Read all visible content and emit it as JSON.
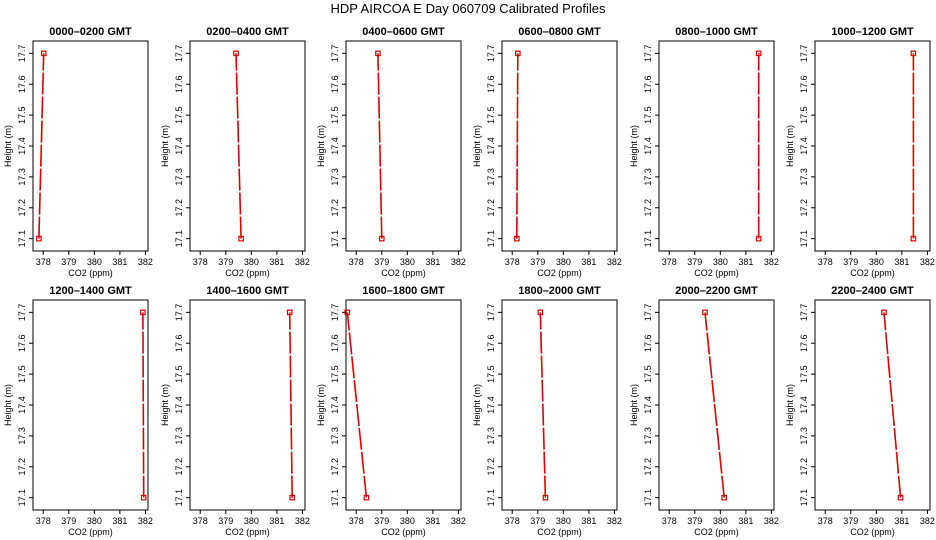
{
  "title": "HDP  AIRCOA E  Day 060709  Calibrated Profiles",
  "line_color": "#dd0000",
  "chart_data": [
    {
      "type": "line",
      "title": "0000–0200 GMT",
      "xlabel": "CO2 (ppm)",
      "ylabel": "Height (m)",
      "xlim": [
        377.6,
        382.1
      ],
      "ylim": [
        17.06,
        17.74
      ],
      "xticks": [
        378,
        379,
        380,
        381,
        382
      ],
      "yticks": [
        17.1,
        17.2,
        17.3,
        17.4,
        17.5,
        17.6,
        17.7
      ],
      "grid": false,
      "series": [
        {
          "x": [
            377.83,
            378.02
          ],
          "y": [
            17.1,
            17.7
          ]
        }
      ]
    },
    {
      "type": "line",
      "title": "0200–0400 GMT",
      "xlabel": "CO2 (ppm)",
      "ylabel": "Height (m)",
      "xlim": [
        377.6,
        382.1
      ],
      "ylim": [
        17.06,
        17.74
      ],
      "xticks": [
        378,
        379,
        380,
        381,
        382
      ],
      "yticks": [
        17.1,
        17.2,
        17.3,
        17.4,
        17.5,
        17.6,
        17.7
      ],
      "grid": false,
      "series": [
        {
          "x": [
            379.6,
            379.4
          ],
          "y": [
            17.1,
            17.7
          ]
        }
      ]
    },
    {
      "type": "line",
      "title": "0400–0600 GMT",
      "xlabel": "CO2 (ppm)",
      "ylabel": "Height (m)",
      "xlim": [
        377.6,
        382.1
      ],
      "ylim": [
        17.06,
        17.74
      ],
      "xticks": [
        378,
        379,
        380,
        381,
        382
      ],
      "yticks": [
        17.1,
        17.2,
        17.3,
        17.4,
        17.5,
        17.6,
        17.7
      ],
      "grid": false,
      "series": [
        {
          "x": [
            379.0,
            378.85
          ],
          "y": [
            17.1,
            17.7
          ]
        }
      ]
    },
    {
      "type": "line",
      "title": "0600–0800 GMT",
      "xlabel": "CO2 (ppm)",
      "ylabel": "Height (m)",
      "xlim": [
        377.6,
        382.1
      ],
      "ylim": [
        17.06,
        17.74
      ],
      "xticks": [
        378,
        379,
        380,
        381,
        382
      ],
      "yticks": [
        17.1,
        17.2,
        17.3,
        17.4,
        17.5,
        17.6,
        17.7
      ],
      "grid": false,
      "series": [
        {
          "x": [
            378.18,
            378.22
          ],
          "y": [
            17.1,
            17.7
          ]
        }
      ]
    },
    {
      "type": "line",
      "title": "0800–1000 GMT",
      "xlabel": "CO2 (ppm)",
      "ylabel": "Height (m)",
      "xlim": [
        377.6,
        382.1
      ],
      "ylim": [
        17.06,
        17.74
      ],
      "xticks": [
        378,
        379,
        380,
        381,
        382
      ],
      "yticks": [
        17.1,
        17.2,
        17.3,
        17.4,
        17.5,
        17.6,
        17.7
      ],
      "grid": false,
      "series": [
        {
          "x": [
            381.5,
            381.5
          ],
          "y": [
            17.1,
            17.7
          ]
        }
      ]
    },
    {
      "type": "line",
      "title": "1000–1200 GMT",
      "xlabel": "CO2 (ppm)",
      "ylabel": "Height (m)",
      "xlim": [
        377.6,
        382.1
      ],
      "ylim": [
        17.06,
        17.74
      ],
      "xticks": [
        378,
        379,
        380,
        381,
        382
      ],
      "yticks": [
        17.1,
        17.2,
        17.3,
        17.4,
        17.5,
        17.6,
        17.7
      ],
      "grid": false,
      "series": [
        {
          "x": [
            381.45,
            381.45
          ],
          "y": [
            17.1,
            17.7
          ]
        }
      ]
    },
    {
      "type": "line",
      "title": "1200–1400 GMT",
      "xlabel": "CO2 (ppm)",
      "ylabel": "Height (m)",
      "xlim": [
        377.6,
        382.1
      ],
      "ylim": [
        17.06,
        17.74
      ],
      "xticks": [
        378,
        379,
        380,
        381,
        382
      ],
      "yticks": [
        17.1,
        17.2,
        17.3,
        17.4,
        17.5,
        17.6,
        17.7
      ],
      "grid": false,
      "series": [
        {
          "x": [
            381.93,
            381.9
          ],
          "y": [
            17.1,
            17.7
          ]
        }
      ]
    },
    {
      "type": "line",
      "title": "1400–1600 GMT",
      "xlabel": "CO2 (ppm)",
      "ylabel": "Height (m)",
      "xlim": [
        377.6,
        382.1
      ],
      "ylim": [
        17.06,
        17.74
      ],
      "xticks": [
        378,
        379,
        380,
        381,
        382
      ],
      "yticks": [
        17.1,
        17.2,
        17.3,
        17.4,
        17.5,
        17.6,
        17.7
      ],
      "grid": false,
      "series": [
        {
          "x": [
            381.6,
            381.5
          ],
          "y": [
            17.1,
            17.7
          ]
        }
      ]
    },
    {
      "type": "line",
      "title": "1600–1800 GMT",
      "xlabel": "CO2 (ppm)",
      "ylabel": "Height (m)",
      "xlim": [
        377.6,
        382.1
      ],
      "ylim": [
        17.06,
        17.74
      ],
      "xticks": [
        378,
        379,
        380,
        381,
        382
      ],
      "yticks": [
        17.1,
        17.2,
        17.3,
        17.4,
        17.5,
        17.6,
        17.7
      ],
      "grid": false,
      "series": [
        {
          "x": [
            378.4,
            377.65
          ],
          "y": [
            17.1,
            17.7
          ]
        }
      ]
    },
    {
      "type": "line",
      "title": "1800–2000 GMT",
      "xlabel": "CO2 (ppm)",
      "ylabel": "Height (m)",
      "xlim": [
        377.6,
        382.1
      ],
      "ylim": [
        17.06,
        17.74
      ],
      "xticks": [
        378,
        379,
        380,
        381,
        382
      ],
      "yticks": [
        17.1,
        17.2,
        17.3,
        17.4,
        17.5,
        17.6,
        17.7
      ],
      "grid": false,
      "series": [
        {
          "x": [
            379.3,
            379.1
          ],
          "y": [
            17.1,
            17.7
          ]
        }
      ]
    },
    {
      "type": "line",
      "title": "2000–2200 GMT",
      "xlabel": "CO2 (ppm)",
      "ylabel": "Height (m)",
      "xlim": [
        377.6,
        382.1
      ],
      "ylim": [
        17.06,
        17.74
      ],
      "xticks": [
        378,
        379,
        380,
        381,
        382
      ],
      "yticks": [
        17.1,
        17.2,
        17.3,
        17.4,
        17.5,
        17.6,
        17.7
      ],
      "grid": false,
      "series": [
        {
          "x": [
            380.15,
            379.4
          ],
          "y": [
            17.1,
            17.7
          ]
        }
      ]
    },
    {
      "type": "line",
      "title": "2200–2400 GMT",
      "xlabel": "CO2 (ppm)",
      "ylabel": "Height (m)",
      "xlim": [
        377.6,
        382.1
      ],
      "ylim": [
        17.06,
        17.74
      ],
      "xticks": [
        378,
        379,
        380,
        381,
        382
      ],
      "yticks": [
        17.1,
        17.2,
        17.3,
        17.4,
        17.5,
        17.6,
        17.7
      ],
      "grid": false,
      "series": [
        {
          "x": [
            380.95,
            380.3
          ],
          "y": [
            17.1,
            17.7
          ]
        }
      ]
    }
  ]
}
